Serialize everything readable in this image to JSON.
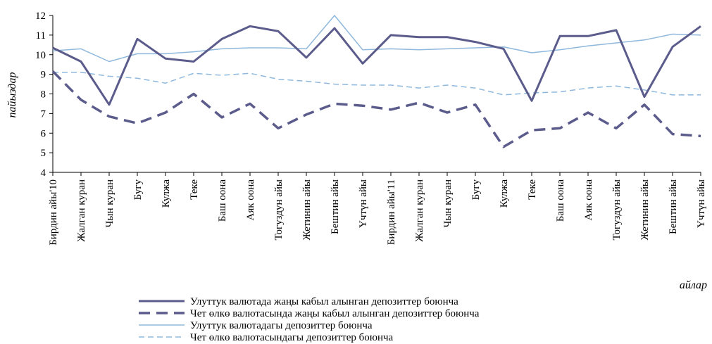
{
  "chart_data": {
    "type": "line",
    "title": "",
    "xlabel": "айлар",
    "ylabel": "пайыздар",
    "ylim": [
      4,
      12
    ],
    "yticks": [
      4,
      5,
      6,
      7,
      8,
      9,
      10,
      11,
      12
    ],
    "grid": false,
    "legend_position": "bottom",
    "categories": [
      "Бирдин айы'10",
      "Жалган куран",
      "Чын куран",
      "Бугу",
      "Кулжа",
      "Теке",
      "Баш оона",
      "Аяк оона",
      "Тогуздун айы",
      "Жетинин айы",
      "Бештин айы",
      "Үчтүн айы",
      "Бирдин айы'11",
      "Жалган куран",
      "Чын куран",
      "Бугу",
      "Кулжа",
      "Теке",
      "Баш оона",
      "Аяк оона",
      "Тогуздун айы",
      "Жетинин айы",
      "Бештин айы",
      "Үчтүн айы"
    ],
    "series": [
      {
        "name": "Улуттук валютада жаңы кабыл алынган депозиттер боюнча",
        "color": "#5b5b8c",
        "style": "solid-thick",
        "values": [
          10.35,
          9.65,
          7.45,
          10.8,
          9.8,
          9.65,
          10.8,
          11.45,
          11.2,
          9.85,
          11.35,
          9.55,
          11.0,
          10.9,
          10.9,
          10.65,
          10.3,
          7.65,
          10.95,
          10.95,
          11.25,
          7.85,
          10.4,
          11.45
        ]
      },
      {
        "name": "Чет өлкө валютасында жаңы кабыл алынган депозиттер боюнча",
        "color": "#5b5b8c",
        "style": "dashed-thick",
        "values": [
          9.15,
          7.7,
          6.85,
          6.5,
          7.05,
          8.0,
          6.8,
          7.5,
          6.25,
          6.95,
          7.5,
          7.4,
          7.2,
          7.55,
          7.05,
          7.45,
          5.3,
          6.15,
          6.25,
          7.05,
          6.25,
          7.45,
          5.95,
          5.85
        ]
      },
      {
        "name": "Улуттук валютадагы депозиттер боюнча",
        "color": "#8fb8dc",
        "style": "solid-thin",
        "values": [
          10.2,
          10.3,
          9.65,
          10.05,
          10.05,
          10.15,
          10.3,
          10.35,
          10.35,
          10.3,
          12.0,
          10.25,
          10.3,
          10.25,
          10.3,
          10.35,
          10.4,
          10.1,
          10.25,
          10.45,
          10.6,
          10.75,
          11.05,
          11.0
        ]
      },
      {
        "name": "Чет өлкө валютасындагы депозиттер боюнча",
        "color": "#8fb8dc",
        "style": "dashed-thin",
        "values": [
          9.1,
          9.1,
          8.9,
          8.8,
          8.55,
          9.05,
          8.95,
          9.05,
          8.75,
          8.65,
          8.5,
          8.45,
          8.45,
          8.3,
          8.45,
          8.3,
          7.95,
          8.05,
          8.1,
          8.3,
          8.4,
          8.2,
          7.95,
          7.95
        ]
      }
    ]
  }
}
